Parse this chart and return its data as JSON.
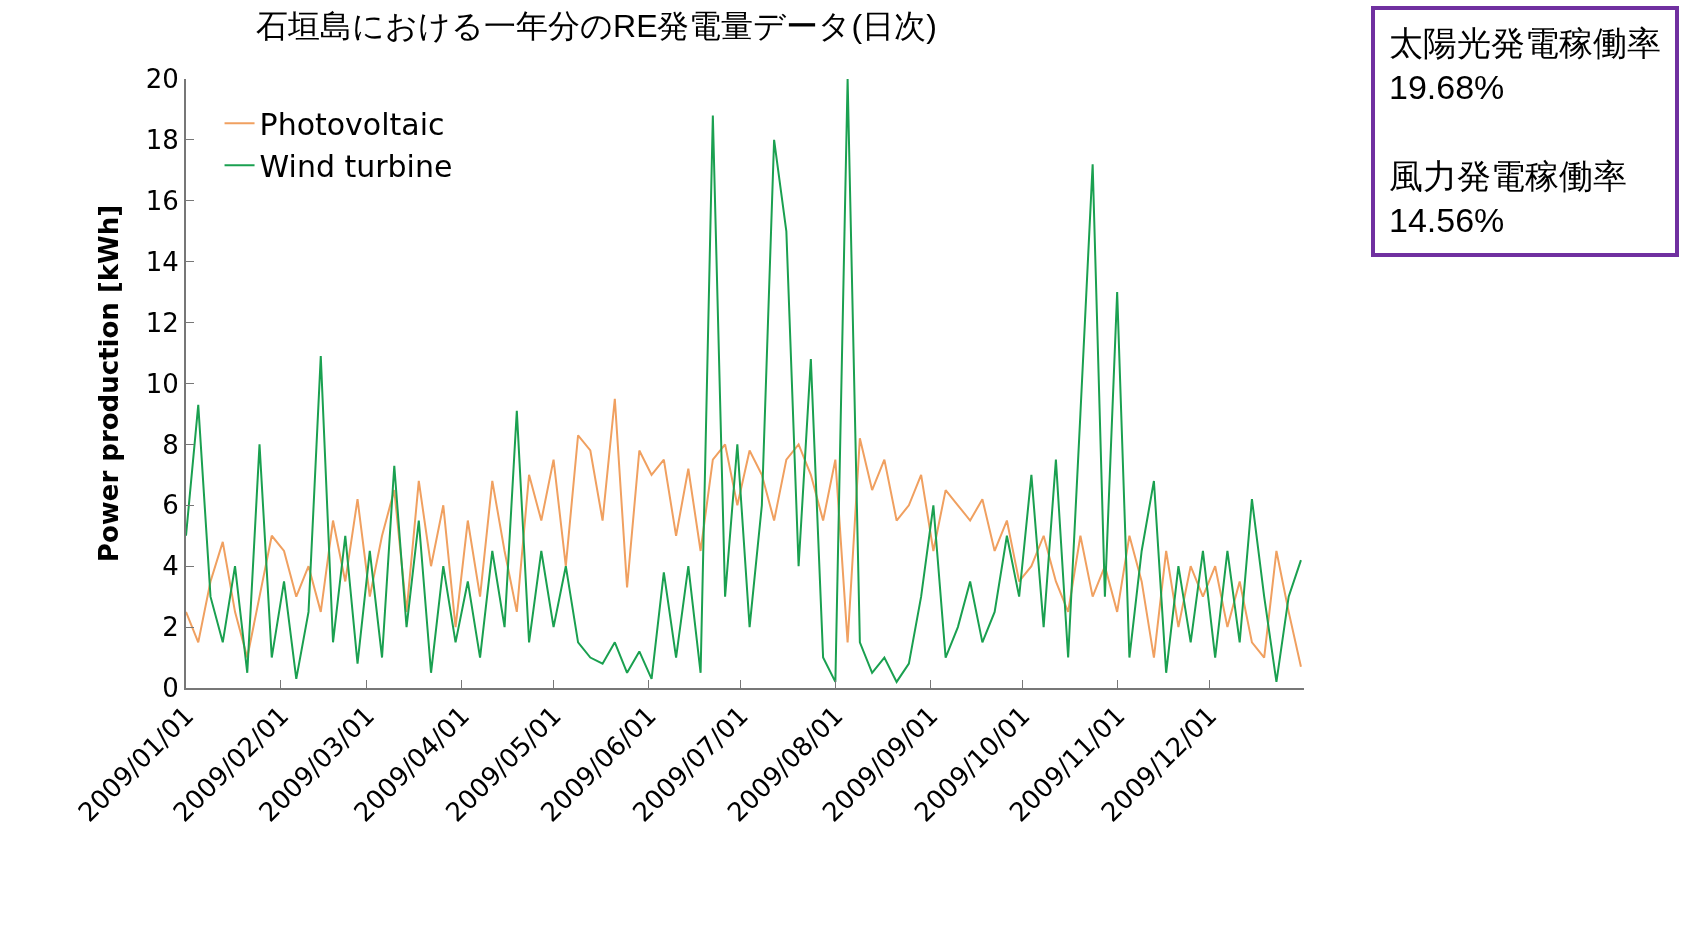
{
  "chart_data": {
    "type": "line",
    "title": "石垣島における一年分のRE発電量データ(日次)",
    "ylabel": "Power production [kWh]",
    "annotations": [
      "太陽光発電稼働率\n19.68%\n\n風力発電稼働率\n14.56%"
    ],
    "x": [
      "2009-01-01",
      "2009-01-05",
      "2009-01-09",
      "2009-01-13",
      "2009-01-17",
      "2009-01-21",
      "2009-01-25",
      "2009-01-29",
      "2009-02-02",
      "2009-02-06",
      "2009-02-10",
      "2009-02-14",
      "2009-02-18",
      "2009-02-22",
      "2009-02-26",
      "2009-03-02",
      "2009-03-06",
      "2009-03-10",
      "2009-03-14",
      "2009-03-18",
      "2009-03-22",
      "2009-03-26",
      "2009-03-30",
      "2009-04-03",
      "2009-04-07",
      "2009-04-11",
      "2009-04-15",
      "2009-04-19",
      "2009-04-23",
      "2009-04-27",
      "2009-05-01",
      "2009-05-05",
      "2009-05-09",
      "2009-05-13",
      "2009-05-17",
      "2009-05-21",
      "2009-05-25",
      "2009-05-29",
      "2009-06-02",
      "2009-06-06",
      "2009-06-10",
      "2009-06-14",
      "2009-06-18",
      "2009-06-22",
      "2009-06-26",
      "2009-06-30",
      "2009-07-04",
      "2009-07-08",
      "2009-07-12",
      "2009-07-16",
      "2009-07-20",
      "2009-07-24",
      "2009-07-28",
      "2009-08-01",
      "2009-08-05",
      "2009-08-09",
      "2009-08-13",
      "2009-08-17",
      "2009-08-21",
      "2009-08-25",
      "2009-08-29",
      "2009-09-02",
      "2009-09-06",
      "2009-09-10",
      "2009-09-14",
      "2009-09-18",
      "2009-09-22",
      "2009-09-26",
      "2009-09-30",
      "2009-10-04",
      "2009-10-08",
      "2009-10-12",
      "2009-10-16",
      "2009-10-20",
      "2009-10-24",
      "2009-10-28",
      "2009-11-01",
      "2009-11-05",
      "2009-11-09",
      "2009-11-13",
      "2009-11-17",
      "2009-11-21",
      "2009-11-25",
      "2009-11-29",
      "2009-12-03",
      "2009-12-07",
      "2009-12-11",
      "2009-12-15",
      "2009-12-19",
      "2009-12-23",
      "2009-12-27",
      "2009-12-31"
    ],
    "series": [
      {
        "name": "Photovoltaic",
        "color": "#f0a060",
        "values": [
          2.5,
          1.5,
          3.5,
          4.8,
          2.5,
          1.0,
          3.0,
          5.0,
          4.5,
          3.0,
          4.0,
          2.5,
          5.5,
          3.5,
          6.2,
          3.0,
          5.0,
          6.5,
          2.5,
          6.8,
          4.0,
          6.0,
          2.0,
          5.5,
          3.0,
          6.8,
          4.5,
          2.5,
          7.0,
          5.5,
          7.5,
          4.0,
          8.3,
          7.8,
          5.5,
          9.5,
          3.3,
          7.8,
          7.0,
          7.5,
          5.0,
          7.2,
          4.5,
          7.5,
          8.0,
          6.0,
          7.8,
          7.0,
          5.5,
          7.5,
          8.0,
          7.0,
          5.5,
          7.5,
          1.5,
          8.2,
          6.5,
          7.5,
          5.5,
          6.0,
          7.0,
          4.5,
          6.5,
          6.0,
          5.5,
          6.2,
          4.5,
          5.5,
          3.5,
          4.0,
          5.0,
          3.5,
          2.5,
          5.0,
          3.0,
          4.0,
          2.5,
          5.0,
          3.5,
          1.0,
          4.5,
          2.0,
          4.0,
          3.0,
          4.0,
          2.0,
          3.5,
          1.5,
          1.0,
          4.5,
          2.5,
          0.7
        ]
      },
      {
        "name": "Wind turbine",
        "color": "#1aa050",
        "values": [
          5.0,
          9.3,
          3.0,
          1.5,
          4.0,
          0.5,
          8.0,
          1.0,
          3.5,
          0.3,
          2.5,
          10.9,
          1.5,
          5.0,
          0.8,
          4.5,
          1.0,
          7.3,
          2.0,
          5.5,
          0.5,
          4.0,
          1.5,
          3.5,
          1.0,
          4.5,
          2.0,
          9.1,
          1.5,
          4.5,
          2.0,
          4.0,
          1.5,
          1.0,
          0.8,
          1.5,
          0.5,
          1.2,
          0.3,
          3.8,
          1.0,
          4.0,
          0.5,
          18.8,
          3.0,
          8.0,
          2.0,
          6.0,
          18.0,
          15.0,
          4.0,
          10.8,
          1.0,
          0.2,
          20.0,
          1.5,
          0.5,
          1.0,
          0.2,
          0.8,
          3.0,
          6.0,
          1.0,
          2.0,
          3.5,
          1.5,
          2.5,
          5.0,
          3.0,
          7.0,
          2.0,
          7.5,
          1.0,
          9.0,
          17.2,
          3.0,
          13.0,
          1.0,
          4.5,
          6.8,
          0.5,
          4.0,
          1.5,
          4.5,
          1.0,
          4.5,
          1.5,
          6.2,
          3.0,
          0.2,
          3.0,
          4.2
        ]
      }
    ],
    "xlim": [
      "2009-01-01",
      "2010-01-01"
    ],
    "xticks": [
      {
        "value": "2009-01-01",
        "label": "2009/01/01"
      },
      {
        "value": "2009-02-01",
        "label": "2009/02/01"
      },
      {
        "value": "2009-03-01",
        "label": "2009/03/01"
      },
      {
        "value": "2009-04-01",
        "label": "2009/04/01"
      },
      {
        "value": "2009-05-01",
        "label": "2009/05/01"
      },
      {
        "value": "2009-06-01",
        "label": "2009/06/01"
      },
      {
        "value": "2009-07-01",
        "label": "2009/07/01"
      },
      {
        "value": "2009-08-01",
        "label": "2009/08/01"
      },
      {
        "value": "2009-09-01",
        "label": "2009/09/01"
      },
      {
        "value": "2009-10-01",
        "label": "2009/10/01"
      },
      {
        "value": "2009-11-01",
        "label": "2009/11/01"
      },
      {
        "value": "2009-12-01",
        "label": "2009/12/01"
      }
    ],
    "ylim": [
      0,
      20
    ],
    "yticks": [
      0,
      2,
      4,
      6,
      8,
      10,
      12,
      14,
      16,
      18,
      20
    ],
    "grid": false,
    "legend": "top left"
  }
}
